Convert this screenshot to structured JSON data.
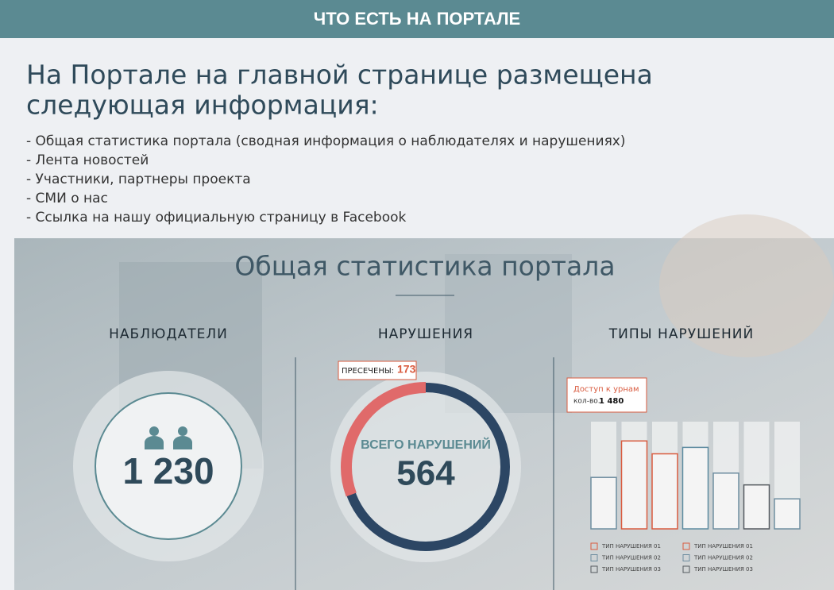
{
  "header": {
    "title": "ЧТО ЕСТЬ НА ПОРТАЛЕ"
  },
  "main": {
    "title_lines": [
      "На Портале на главной странице размещена",
      "следующая информация:"
    ],
    "bullets": [
      "- Общая статистика портала (сводная информация о наблюдателях и нарушениях)",
      "- Лента новостей",
      "- Участники, партнеры проекта",
      "- СМИ о нас",
      "- Ссылка на нашу официальную страницу в Facebook"
    ]
  },
  "screenshot": {
    "title": "Общая статистика портала",
    "observers": {
      "heading": "НАБЛЮДАТЕЛИ",
      "count": "1 230"
    },
    "violations": {
      "heading": "НАРУШЕНИЯ",
      "stopped_label": "ПРЕСЕЧЕНЫ:",
      "stopped": 173,
      "total_label": "ВСЕГО НАРУШЕНИЙ",
      "total": 564
    },
    "types": {
      "heading": "ТИПЫ НАРУШЕНИЙ",
      "tooltip_title": "Доступ к урнам",
      "tooltip_label": "кол-во.",
      "tooltip_value": "1 480",
      "bars": [
        {
          "value": 48,
          "color": "#6f8ea0"
        },
        {
          "value": 82,
          "color": "#d95b3f"
        },
        {
          "value": 70,
          "color": "#d95b3f"
        },
        {
          "value": 76,
          "color": "#5d8ba0"
        },
        {
          "value": 52,
          "color": "#6f8ea0"
        },
        {
          "value": 41,
          "color": "#555a60"
        },
        {
          "value": 28,
          "color": "#6f8ea0"
        }
      ],
      "legend": [
        "ТИП НАРУШЕНИЯ 01",
        "ТИП НАРУШЕНИЯ 02",
        "ТИП НАРУШЕНИЯ 03",
        "ТИП НАРУШЕНИЯ 01",
        "ТИП НАРУШЕНИЯ 02",
        "ТИП НАРУШЕНИЯ 03"
      ]
    }
  }
}
